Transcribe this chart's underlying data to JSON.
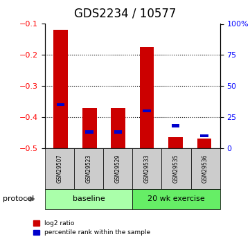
{
  "title": "GDS2234 / 10577",
  "samples": [
    "GSM29507",
    "GSM29523",
    "GSM29529",
    "GSM29533",
    "GSM29535",
    "GSM29536"
  ],
  "log2_ratio": [
    -0.12,
    -0.37,
    -0.37,
    -0.175,
    -0.465,
    -0.47
  ],
  "percentile_rank": [
    35,
    13,
    13,
    30,
    18,
    10
  ],
  "ylim_left": [
    -0.5,
    -0.1
  ],
  "ylim_right": [
    0,
    100
  ],
  "yticks_left": [
    -0.5,
    -0.4,
    -0.3,
    -0.2,
    -0.1
  ],
  "yticks_right": [
    0,
    25,
    50,
    75,
    100
  ],
  "ytick_labels_right": [
    "0",
    "25",
    "50",
    "75",
    "100%"
  ],
  "groups": [
    {
      "label": "baseline",
      "indices": [
        0,
        1,
        2
      ],
      "color": "#aaffaa"
    },
    {
      "label": "20 wk exercise",
      "indices": [
        3,
        4,
        5
      ],
      "color": "#66ee66"
    }
  ],
  "protocol_label": "protocol",
  "bar_color_red": "#cc0000",
  "bar_color_blue": "#0000cc",
  "bar_width": 0.5,
  "grid_color": "#000000",
  "bg_color": "#ffffff",
  "sample_box_color": "#cccccc",
  "legend_red_label": "log2 ratio",
  "legend_blue_label": "percentile rank within the sample",
  "title_fontsize": 12,
  "axis_fontsize": 9,
  "tick_fontsize": 8
}
